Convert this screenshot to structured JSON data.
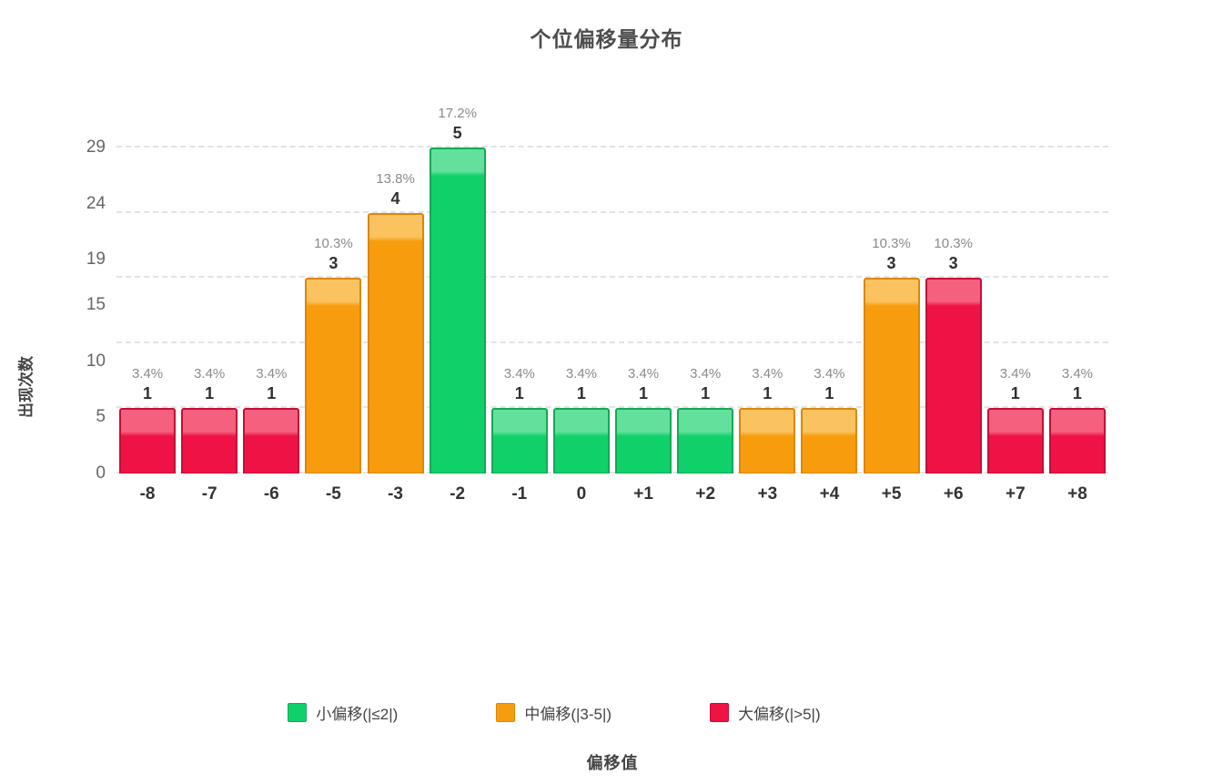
{
  "chart_data": {
    "type": "bar",
    "title": "个位偏移量分布",
    "xlabel": "偏移值",
    "ylabel": "出现次数",
    "categories": [
      "-8",
      "-7",
      "-6",
      "-5",
      "-3",
      "-2",
      "-1",
      "0",
      "+1",
      "+2",
      "+3",
      "+4",
      "+5",
      "+6",
      "+7",
      "+8"
    ],
    "values": [
      1,
      1,
      1,
      3,
      4,
      5,
      1,
      1,
      1,
      1,
      1,
      1,
      3,
      3,
      1,
      1
    ],
    "percent_labels": [
      "3.4%",
      "3.4%",
      "3.4%",
      "10.3%",
      "13.8%",
      "17.2%",
      "3.4%",
      "3.4%",
      "3.4%",
      "3.4%",
      "3.4%",
      "3.4%",
      "10.3%",
      "10.3%",
      "3.4%",
      "3.4%"
    ],
    "groups": [
      "large",
      "large",
      "large",
      "mid",
      "mid",
      "small",
      "small",
      "small",
      "small",
      "small",
      "mid",
      "mid",
      "mid",
      "large",
      "large",
      "large"
    ],
    "y_ticks": [
      29,
      24,
      19,
      15,
      10,
      5,
      0
    ],
    "y_max": 29,
    "bar_scale_max": 5,
    "grid_levels": [
      0,
      1,
      2,
      3,
      4,
      5
    ],
    "grid_on": true,
    "legend_position": "bottom",
    "legend": [
      {
        "group": "small",
        "label": "小偏移(|≤2|)"
      },
      {
        "group": "mid",
        "label": "中偏移(|3-5|)"
      },
      {
        "group": "large",
        "label": "大偏移(|>5|)"
      }
    ],
    "colors": {
      "small": {
        "fill": "#10d169",
        "top": "#63e19c",
        "border": "#12a957"
      },
      "mid": {
        "fill": "#f79d0d",
        "top": "#fac35f",
        "border": "#dd8609"
      },
      "large": {
        "fill": "#ef1245",
        "top": "#f4607e",
        "border": "#c50e38"
      }
    }
  }
}
